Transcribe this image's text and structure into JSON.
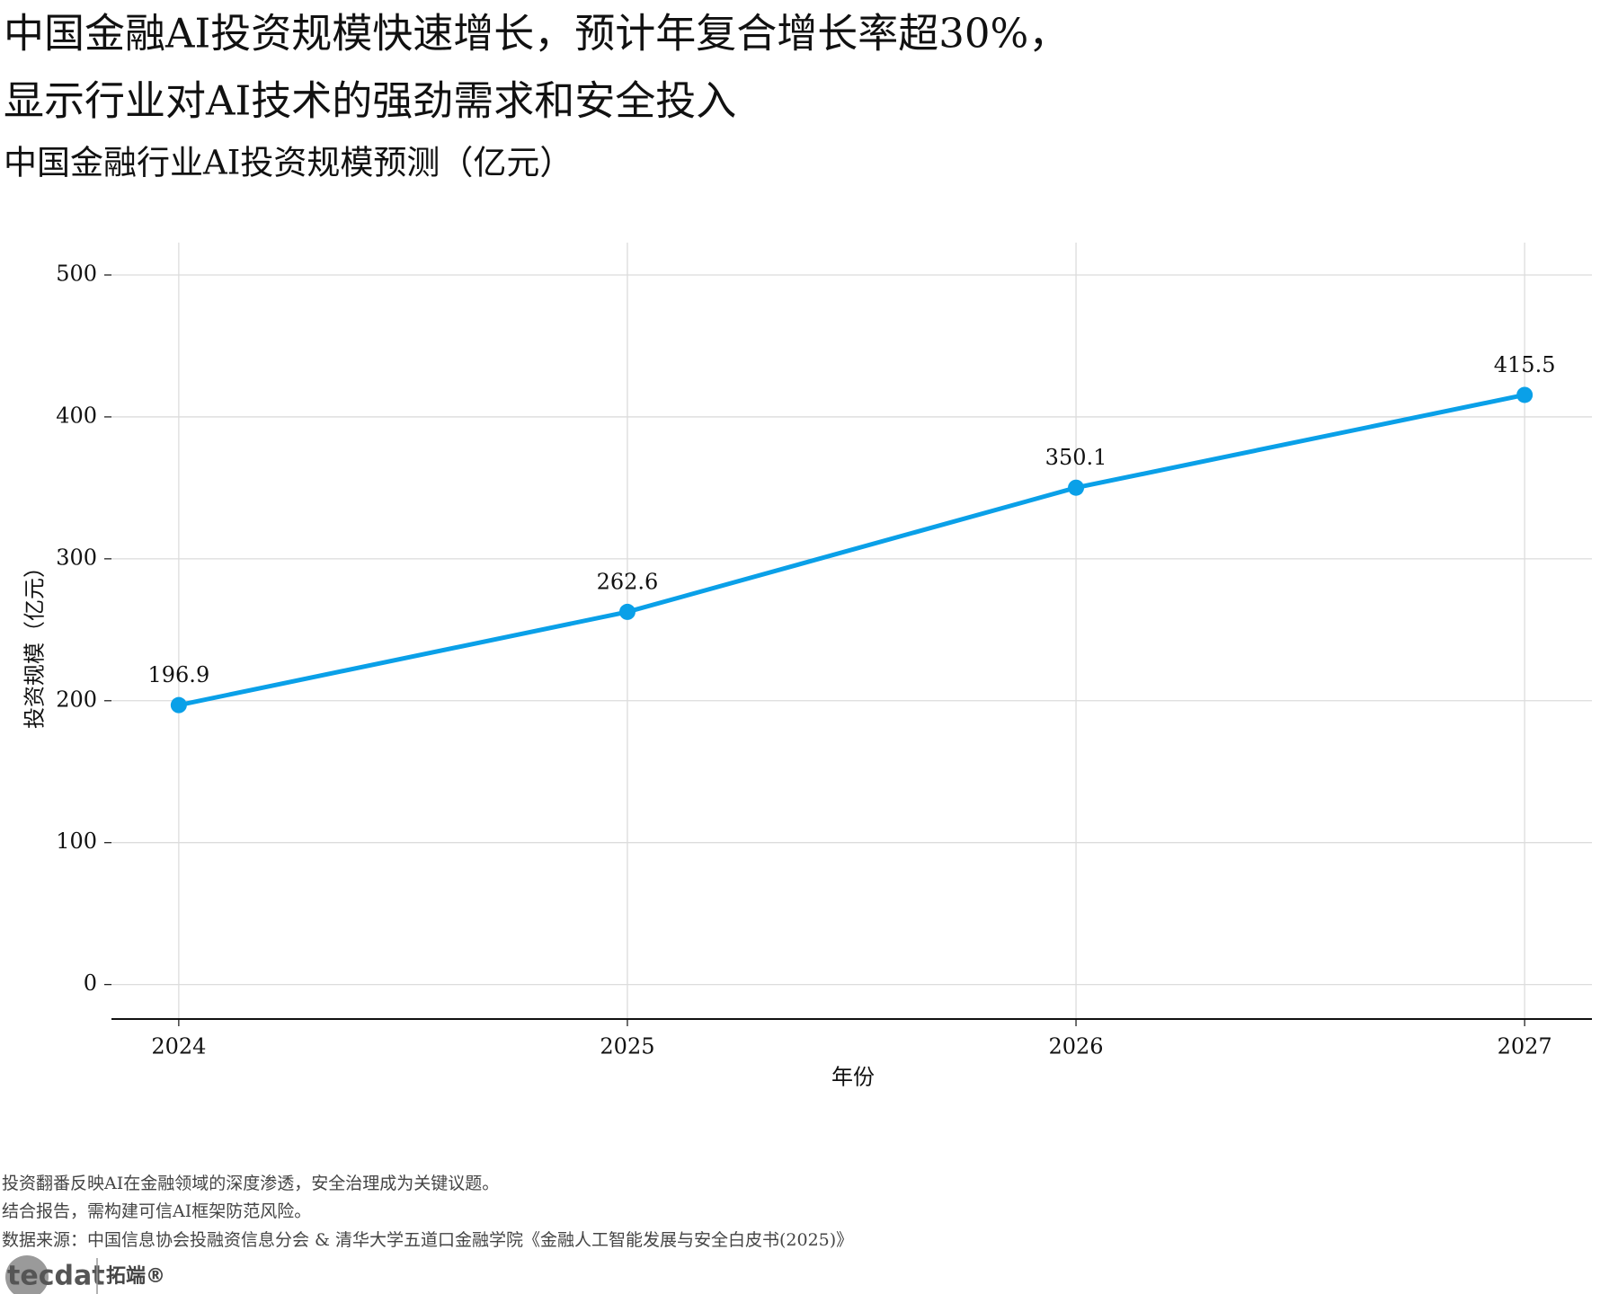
{
  "chart_data": {
    "type": "line",
    "title": [
      "中国金融AI投资规模快速增长，预计年复合增长率超30%，",
      "显示行业对AI技术的强劲需求和安全投入"
    ],
    "subtitle": "中国金融行业AI投资规模预测（亿元）",
    "x_label": "年份",
    "y_label": "投资规模（亿元）",
    "x": [
      2024,
      2025,
      2026,
      2027
    ],
    "series": [
      {
        "name": "投资规模",
        "color": "#0aa0e8",
        "values": [
          196.9,
          262.6,
          350.1,
          415.5
        ]
      }
    ],
    "xlim": [
      2023.85,
      2027.15
    ],
    "xticks": [
      2024,
      2025,
      2026,
      2027
    ],
    "ylim": [
      -24.3,
      522.8
    ],
    "yticks": [
      0,
      100,
      200,
      300,
      400,
      500
    ],
    "grid": true,
    "notes": [
      "投资翻番反映AI在金融领域的深度渗透，安全治理成为关键议题。",
      "结合报告，需构建可信AI框架防范风险。",
      "数据来源：中国信息协会投融资信息分会 & 清华大学五道口金融学院《金融人工智能发展与安全白皮书(2025)》"
    ],
    "logo": {
      "mark": "tecdat",
      "brand": "拓端®"
    }
  }
}
